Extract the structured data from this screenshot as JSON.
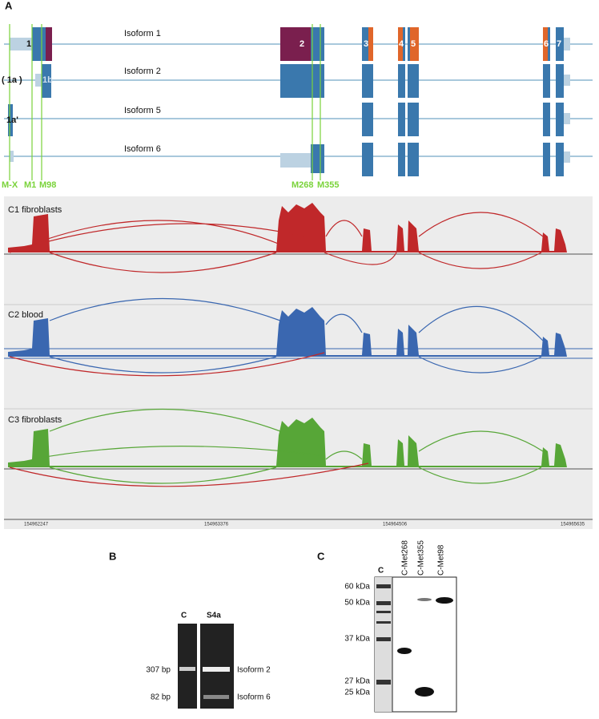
{
  "panel_a": {
    "label": "A",
    "isoforms": [
      "Isoform 1",
      "Isoform 2",
      "Isoform 5",
      "Isoform 6"
    ],
    "exons": [
      "1",
      "2",
      "3",
      "4",
      "5",
      "6",
      "7",
      "( 1a )",
      "1b",
      "1a'"
    ],
    "start_sites": [
      "M-X",
      "M1",
      "M98",
      "M268",
      "M355"
    ],
    "tracks": [
      "C1 fibroblasts",
      "C2 blood",
      "C3 fibroblasts"
    ],
    "coordinates": [
      "154962247",
      "154963376",
      "154964506",
      "154965635"
    ]
  },
  "panel_b": {
    "label": "B",
    "lanes": [
      "C",
      "S4a"
    ],
    "sizes": [
      "307 bp",
      "82 bp"
    ],
    "bands": [
      "Isoform 2",
      "Isoform 6"
    ]
  },
  "panel_c": {
    "label": "C",
    "lanes": [
      "C",
      "C-Met268",
      "C-Met355",
      "C-Met98"
    ],
    "markers": [
      "60 kDa",
      "50 kDa",
      "37 kDa",
      "27 kDa",
      "25 kDa"
    ]
  }
}
